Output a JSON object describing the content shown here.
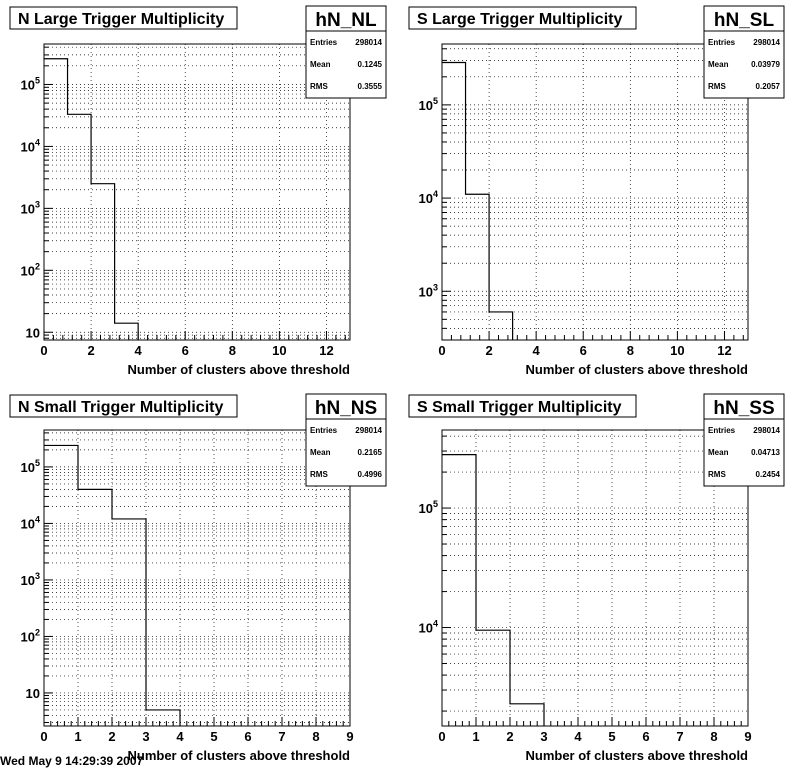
{
  "footer": "Wed May 9 14:29:39 2007",
  "chart_data": [
    {
      "type": "histogram",
      "title": "N Large Trigger Multiplicity",
      "hist_name": "hN_NL",
      "stats": {
        "entries_label": "Entries",
        "entries": "298014",
        "mean_label": "Mean",
        "mean": "0.1245",
        "rms_label": "RMS",
        "rms": "0.3555"
      },
      "xlabel": "Number of clusters above threshold",
      "x_edges": [
        0,
        1,
        2,
        3,
        4
      ],
      "values": [
        260000,
        33000,
        2500,
        14
      ],
      "xlim": [
        0,
        13
      ],
      "xticks": [
        0,
        2,
        4,
        6,
        8,
        10,
        12
      ],
      "xtick_labels": [
        "0",
        "2",
        "4",
        "6",
        "8",
        "10",
        "12"
      ],
      "ylim": [
        7.5,
        450000
      ],
      "log_y": true,
      "yticks": [
        10,
        100,
        1000,
        10000,
        100000
      ],
      "ytick_labels": [
        {
          "base": "10",
          "exp": ""
        },
        {
          "base": "10",
          "exp": "2"
        },
        {
          "base": "10",
          "exp": "3"
        },
        {
          "base": "10",
          "exp": "4"
        },
        {
          "base": "10",
          "exp": "5"
        }
      ],
      "grid": true
    },
    {
      "type": "histogram",
      "title": "S Large Trigger Multiplicity",
      "hist_name": "hN_SL",
      "stats": {
        "entries_label": "Entries",
        "entries": "298014",
        "mean_label": "Mean",
        "mean": "0.03979",
        "rms_label": "RMS",
        "rms": "0.2057"
      },
      "xlabel": "Number of clusters above threshold",
      "x_edges": [
        0,
        1,
        2,
        3
      ],
      "values": [
        285000,
        11000,
        600
      ],
      "xlim": [
        0,
        13
      ],
      "xticks": [
        0,
        2,
        4,
        6,
        8,
        10,
        12
      ],
      "xtick_labels": [
        "0",
        "2",
        "4",
        "6",
        "8",
        "10",
        "12"
      ],
      "ylim": [
        300,
        450000
      ],
      "log_y": true,
      "yticks": [
        1000,
        10000,
        100000
      ],
      "ytick_labels": [
        {
          "base": "10",
          "exp": "3"
        },
        {
          "base": "10",
          "exp": "4"
        },
        {
          "base": "10",
          "exp": "5"
        }
      ],
      "grid": true
    },
    {
      "type": "histogram",
      "title": "N Small Trigger Multiplicity",
      "hist_name": "hN_NS",
      "stats": {
        "entries_label": "Entries",
        "entries": "298014",
        "mean_label": "Mean",
        "mean": "0.2165",
        "rms_label": "RMS",
        "rms": "0.4996"
      },
      "xlabel": "Number of clusters above threshold",
      "x_edges": [
        0,
        1,
        2,
        3,
        4
      ],
      "values": [
        240000,
        40000,
        12000,
        5
      ],
      "xlim": [
        0,
        9
      ],
      "xticks": [
        0,
        1,
        2,
        3,
        4,
        5,
        6,
        7,
        8,
        9
      ],
      "xtick_labels": [
        "0",
        "1",
        "2",
        "3",
        "4",
        "5",
        "6",
        "7",
        "8",
        "9"
      ],
      "ylim": [
        2.6,
        450000
      ],
      "log_y": true,
      "yticks": [
        10,
        100,
        1000,
        10000,
        100000
      ],
      "ytick_labels": [
        {
          "base": "10",
          "exp": ""
        },
        {
          "base": "10",
          "exp": "2"
        },
        {
          "base": "10",
          "exp": "3"
        },
        {
          "base": "10",
          "exp": "4"
        },
        {
          "base": "10",
          "exp": "5"
        }
      ],
      "grid": true
    },
    {
      "type": "histogram",
      "title": "S Small Trigger Multiplicity",
      "hist_name": "hN_SS",
      "stats": {
        "entries_label": "Entries",
        "entries": "298014",
        "mean_label": "Mean",
        "mean": "0.04713",
        "rms_label": "RMS",
        "rms": "0.2454"
      },
      "xlabel": "Number of clusters above threshold",
      "x_edges": [
        0,
        1,
        2,
        3
      ],
      "values": [
        280000,
        9500,
        2300
      ],
      "xlim": [
        0,
        9
      ],
      "xticks": [
        0,
        1,
        2,
        3,
        4,
        5,
        6,
        7,
        8,
        9
      ],
      "xtick_labels": [
        "0",
        "1",
        "2",
        "3",
        "4",
        "5",
        "6",
        "7",
        "8",
        "9"
      ],
      "ylim": [
        1500,
        450000
      ],
      "log_y": true,
      "yticks": [
        10000,
        100000
      ],
      "ytick_labels": [
        {
          "base": "10",
          "exp": "4"
        },
        {
          "base": "10",
          "exp": "5"
        }
      ],
      "grid": true
    }
  ]
}
